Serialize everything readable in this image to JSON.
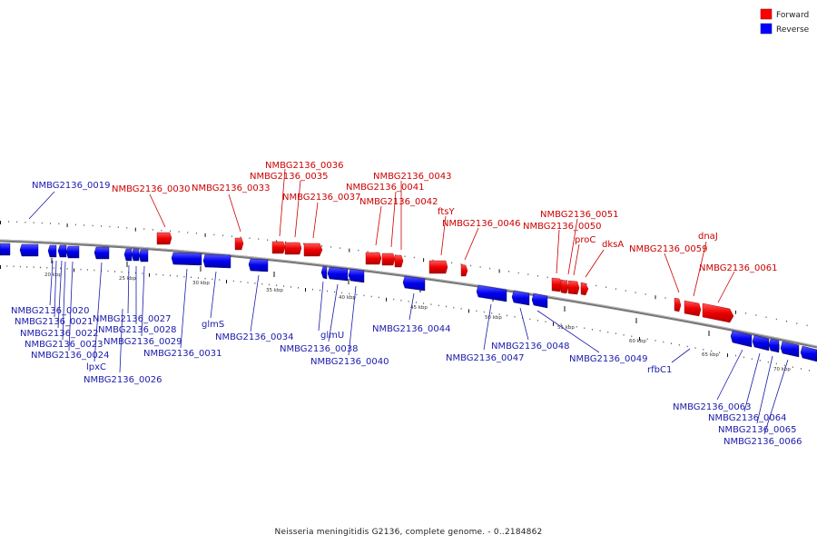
{
  "colors": {
    "forward": "#ff0000",
    "reverse": "#0000ff",
    "backbone": "#888888",
    "forward_label": "#cc0000",
    "reverse_label": "#1a1aaa"
  },
  "legend": {
    "forward": "Forward",
    "reverse": "Reverse"
  },
  "caption": "Neisseria meningitidis G2136, complete genome. - 0..2184862",
  "scale_labels": [
    "20 kbp",
    "25 kbp",
    "30 kbp",
    "35 kbp",
    "40 kbp",
    "45 kbp",
    "50 kbp",
    "55 kbp",
    "60 kbp",
    "65 kbp",
    "70 kbp"
  ],
  "forward_labels": [
    "NMBG2136_0030",
    "NMBG2136_0033",
    "NMBG2136_0036",
    "NMBG2136_0035",
    "NMBG2136_0037",
    "NMBG2136_0043",
    "NMBG2136_0041",
    "NMBG2136_0042",
    "ftsY",
    "NMBG2136_0046",
    "NMBG2136_0051",
    "NMBG2136_0050",
    "proC",
    "dksA",
    "NMBG2136_0059",
    "dnaJ",
    "NMBG2136_0061"
  ],
  "reverse_labels": [
    "NMBG2136_0019",
    "NMBG2136_0020",
    "NMBG2136_0021",
    "NMBG2136_0022",
    "NMBG2136_0023",
    "NMBG2136_0024",
    "lpxC",
    "NMBG2136_0026",
    "NMBG2136_0027",
    "NMBG2136_0028",
    "NMBG2136_0029",
    "NMBG2136_0031",
    "glmS",
    "NMBG2136_0034",
    "glmU",
    "NMBG2136_0038",
    "NMBG2136_0040",
    "NMBG2136_0044",
    "NMBG2136_0047",
    "NMBG2136_0048",
    "NMBG2136_0049",
    "rfbC1",
    "NMBG2136_0063",
    "NMBG2136_0064",
    "NMBG2136_0065",
    "NMBG2136_0066"
  ]
}
